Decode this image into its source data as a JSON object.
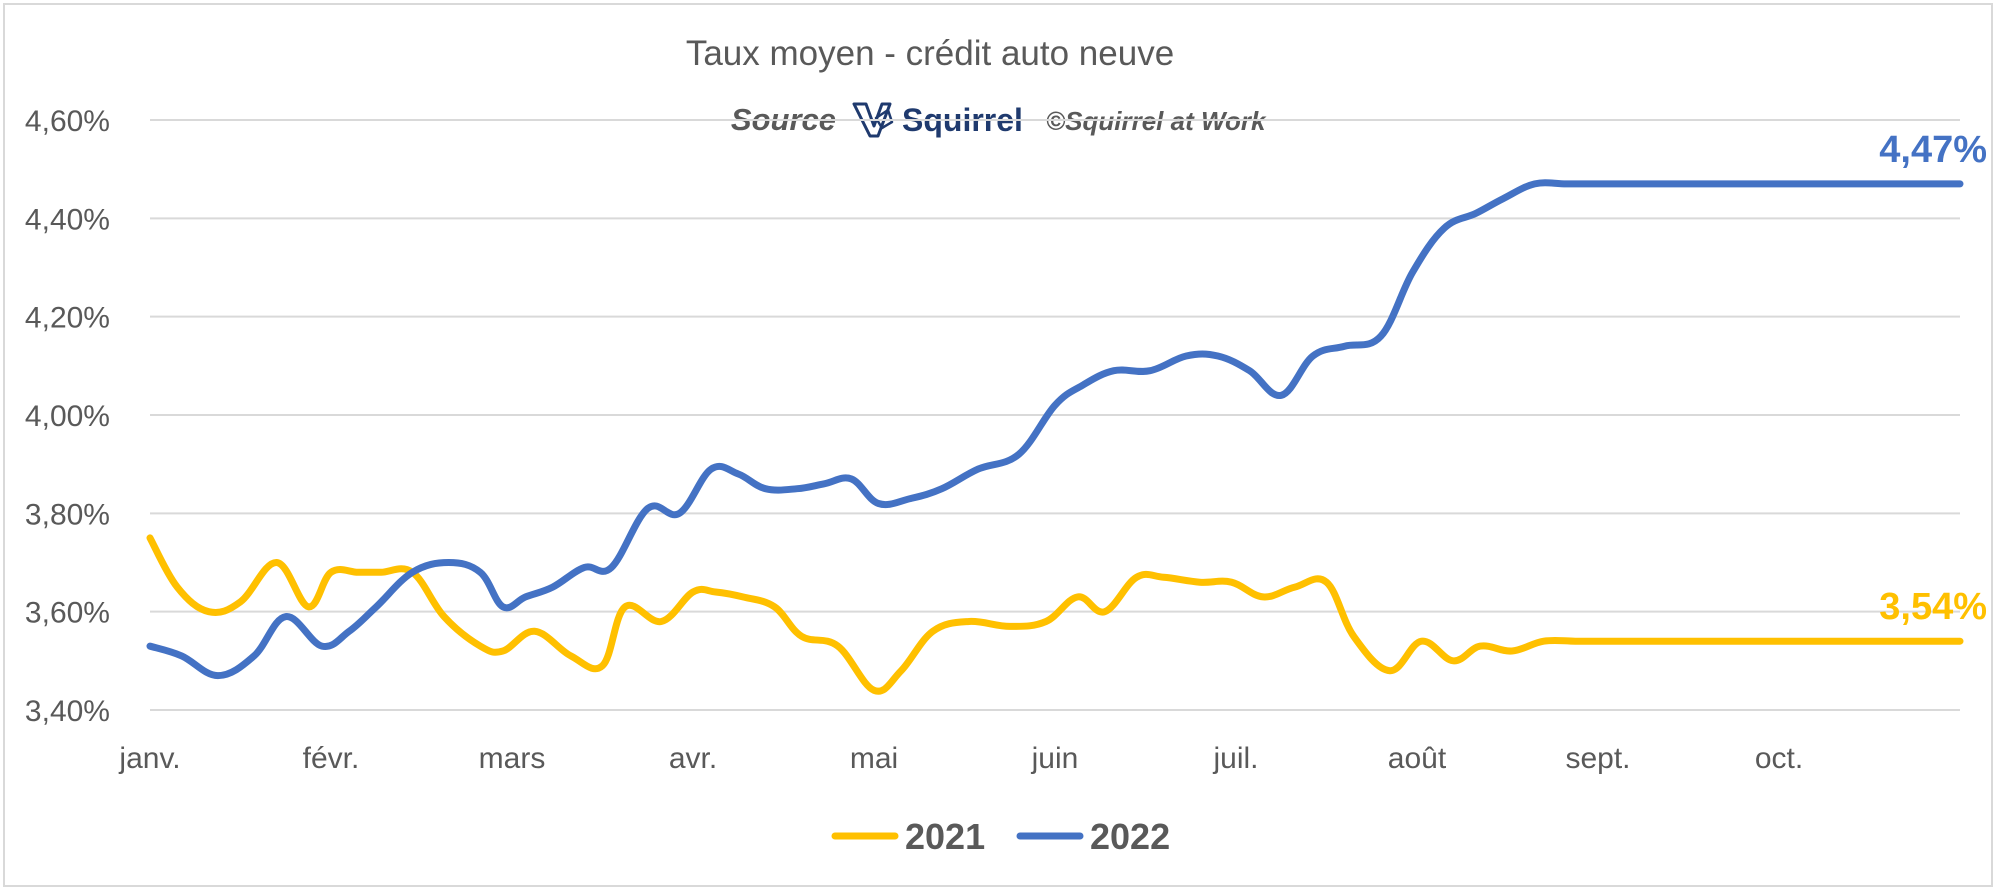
{
  "chart_data": {
    "type": "line",
    "title": "Taux moyen - crédit auto neuve",
    "subtitle": {
      "source_label": "Source",
      "brand": "Squirrel",
      "copyright": "©Squirrel at Work"
    },
    "xlabel": "",
    "ylabel": "",
    "ylim": [
      3.4,
      4.6
    ],
    "y_ticks": [
      {
        "value": 3.4,
        "label": "3,40%"
      },
      {
        "value": 3.6,
        "label": "3,60%"
      },
      {
        "value": 3.8,
        "label": "3,80%"
      },
      {
        "value": 4.0,
        "label": "4,00%"
      },
      {
        "value": 4.2,
        "label": "4,20%"
      },
      {
        "value": 4.4,
        "label": "4,40%"
      },
      {
        "value": 4.6,
        "label": "4,60%"
      }
    ],
    "x_ticks": [
      {
        "value": 0,
        "label": "janv."
      },
      {
        "value": 4,
        "label": "févr."
      },
      {
        "value": 8,
        "label": "mars"
      },
      {
        "value": 12,
        "label": "avr."
      },
      {
        "value": 16,
        "label": "mai"
      },
      {
        "value": 20,
        "label": "juin"
      },
      {
        "value": 24,
        "label": "juil."
      },
      {
        "value": 28,
        "label": "août"
      },
      {
        "value": 32,
        "label": "sept."
      },
      {
        "value": 36,
        "label": "oct."
      }
    ],
    "x_max": 40,
    "grid": true,
    "legend_position": "bottom",
    "series": [
      {
        "name": "2021",
        "color": "#FFC000",
        "end_label": "3,54%",
        "x": [
          0,
          0.6,
          1.3,
          2,
          2.8,
          3.5,
          4,
          4.6,
          5.1,
          5.8,
          6.5,
          7.3,
          7.8,
          8.5,
          9.3,
          10,
          10.5,
          11.3,
          12,
          12.5,
          13.1,
          13.8,
          14.4,
          15.2,
          16,
          16.6,
          17.3,
          18.1,
          19,
          19.8,
          20.5,
          21.1,
          21.8,
          22.4,
          23.2,
          23.9,
          24.6,
          25.3,
          26,
          26.6,
          27.4,
          28.1,
          28.8,
          29.4,
          30.1,
          30.8,
          31.5,
          32.2,
          32.9,
          33.4,
          34,
          34.6,
          35.3,
          35.9,
          36.6,
          37.2,
          37.8,
          38.4,
          39.2,
          40
        ],
        "y": [
          3.75,
          3.65,
          3.6,
          3.62,
          3.7,
          3.61,
          3.68,
          3.68,
          3.68,
          3.68,
          3.59,
          3.53,
          3.52,
          3.56,
          3.51,
          3.49,
          3.61,
          3.58,
          3.64,
          3.64,
          3.63,
          3.61,
          3.55,
          3.53,
          3.44,
          3.48,
          3.56,
          3.58,
          3.57,
          3.58,
          3.63,
          3.6,
          3.67,
          3.67,
          3.66,
          3.66,
          3.63,
          3.65,
          3.66,
          3.55,
          3.48,
          3.54,
          3.5,
          3.53,
          3.52,
          3.54,
          3.54,
          3.54,
          3.54,
          3.54,
          3.54,
          3.54,
          3.54,
          3.54,
          3.54,
          3.54,
          3.54,
          3.54,
          3.54,
          3.54
        ]
      },
      {
        "name": "2022",
        "color": "#4472C4",
        "end_label": "4,47%",
        "x": [
          0,
          0.7,
          1.5,
          2.3,
          3,
          3.8,
          4.4,
          5,
          5.8,
          6.6,
          7.3,
          7.8,
          8.3,
          8.9,
          9.6,
          10.2,
          11,
          11.7,
          12.4,
          13,
          13.6,
          14.3,
          14.9,
          15.5,
          16.1,
          16.8,
          17.5,
          18.3,
          19.2,
          20,
          20.6,
          21.3,
          22.1,
          22.9,
          23.6,
          24.3,
          25,
          25.7,
          26.4,
          27.2,
          27.9,
          28.6,
          29.3,
          29.9,
          30.6,
          31.3,
          32.1,
          32.8,
          33.4,
          34.1,
          34.9,
          35.5,
          36.2,
          36.9,
          37.5,
          38.3,
          39,
          40
        ],
        "y": [
          3.53,
          3.51,
          3.47,
          3.51,
          3.59,
          3.53,
          3.56,
          3.61,
          3.68,
          3.7,
          3.68,
          3.61,
          3.63,
          3.65,
          3.69,
          3.69,
          3.81,
          3.8,
          3.89,
          3.88,
          3.85,
          3.85,
          3.86,
          3.87,
          3.82,
          3.83,
          3.85,
          3.89,
          3.92,
          4.02,
          4.06,
          4.09,
          4.09,
          4.12,
          4.12,
          4.09,
          4.04,
          4.12,
          4.14,
          4.16,
          4.29,
          4.38,
          4.41,
          4.44,
          4.47,
          4.47,
          4.47,
          4.47,
          4.47,
          4.47,
          4.47,
          4.47,
          4.47,
          4.47,
          4.47,
          4.47,
          4.47,
          4.47
        ]
      }
    ]
  }
}
